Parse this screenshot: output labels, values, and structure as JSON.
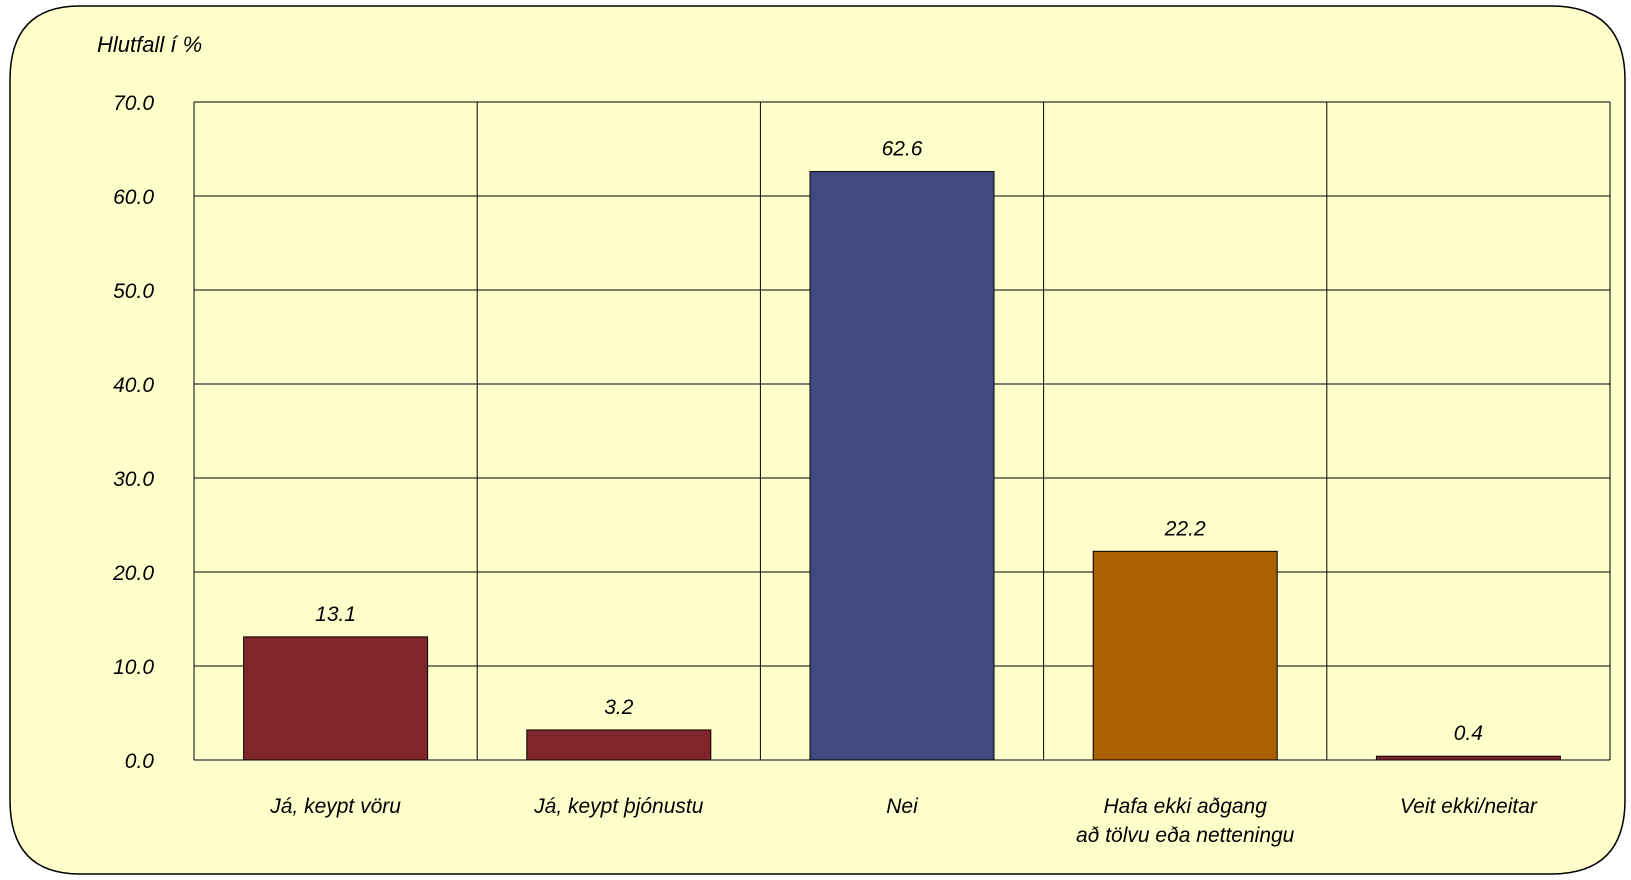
{
  "chart_data": {
    "type": "bar",
    "ylabel": "Hlutfall í %",
    "ylim": [
      0,
      70
    ],
    "yticks": [
      "0.0",
      "10.0",
      "20.0",
      "30.0",
      "40.0",
      "50.0",
      "60.0",
      "70.0"
    ],
    "categories": [
      [
        "Já, keypt vöru"
      ],
      [
        "Já, keypt þjónustu"
      ],
      [
        "Nei"
      ],
      [
        "Hafa ekki aðgang",
        "að tölvu eða netteningu"
      ],
      [
        "Veit ekki/neitar"
      ]
    ],
    "values": [
      13.1,
      3.2,
      62.6,
      22.2,
      0.4
    ],
    "value_labels": [
      "13.1",
      "3.2",
      "62.6",
      "22.2",
      "0.4"
    ],
    "grid": true,
    "colors": {
      "background": "#FFFFCC",
      "bars": [
        "#80262B",
        "#80262B",
        "#404A80",
        "#A86000",
        "#80262B"
      ],
      "grid": "#000000"
    }
  }
}
